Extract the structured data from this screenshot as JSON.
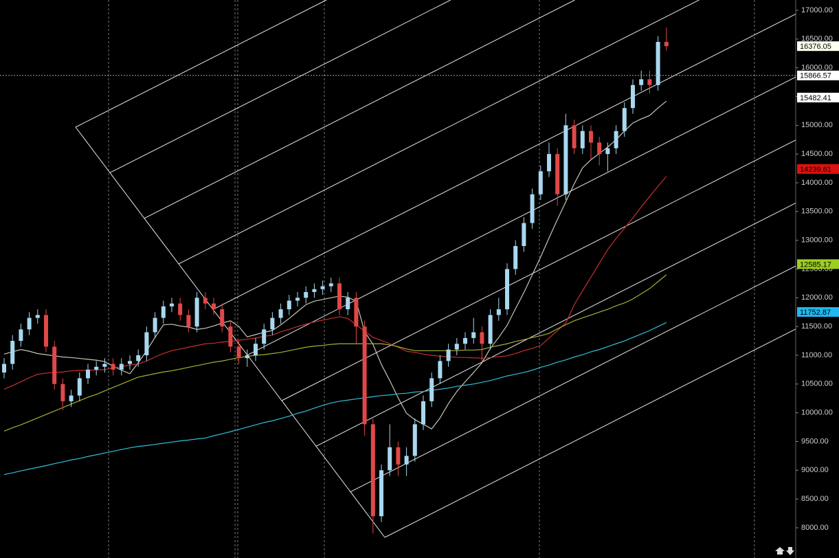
{
  "chart_data": {
    "type": "candlestick",
    "categories": [
      null,
      null,
      null,
      null,
      null,
      null,
      null,
      null,
      null,
      null,
      null,
      null,
      null,
      null,
      null,
      null,
      null,
      null,
      null,
      null,
      null,
      null,
      null,
      null,
      null,
      null,
      null,
      null,
      null,
      null,
      null,
      null,
      null,
      null,
      null,
      null,
      null,
      null,
      null,
      null,
      null,
      null,
      null,
      null,
      null,
      null,
      null,
      null,
      null,
      null,
      null,
      null,
      null,
      null,
      null,
      null,
      null,
      null,
      null,
      null,
      null,
      null,
      null,
      null,
      null,
      null,
      null,
      null,
      null,
      null,
      null,
      null,
      null,
      null,
      null,
      null,
      null,
      null,
      null,
      null
    ],
    "open": [
      10700,
      10850,
      11250,
      11450,
      11650,
      11700,
      11150,
      10500,
      10200,
      10300,
      10600,
      10750,
      10800,
      10850,
      10750,
      10850,
      10900,
      11000,
      11400,
      11650,
      11850,
      11900,
      11700,
      11500,
      12000,
      11900,
      11800,
      11500,
      11150,
      10950,
      11000,
      11200,
      11450,
      11650,
      11800,
      11950,
      12000,
      12100,
      12150,
      12200,
      12250,
      11800,
      12000,
      11500,
      9800,
      8200,
      9000,
      9400,
      9100,
      9250,
      9800,
      10200,
      10600,
      10900,
      11100,
      11200,
      11300,
      11400,
      11200,
      11700,
      11800,
      12500,
      12900,
      13300,
      13800,
      14200,
      14500,
      13800,
      15000,
      14600,
      14900,
      14700,
      14500,
      14600,
      14900,
      15300,
      15700,
      15800,
      15700,
      16450
    ],
    "high": [
      10950,
      11350,
      11550,
      11750,
      11800,
      11800,
      11250,
      10600,
      10400,
      10700,
      10850,
      10900,
      10950,
      10950,
      10950,
      11000,
      11100,
      11500,
      11750,
      11950,
      12000,
      12000,
      11800,
      12100,
      12100,
      12000,
      11900,
      11600,
      11250,
      11100,
      11300,
      11550,
      11750,
      11900,
      12050,
      12100,
      12200,
      12250,
      12300,
      12350,
      12350,
      12100,
      12100,
      11600,
      9900,
      9100,
      9800,
      9500,
      9400,
      9900,
      10300,
      10700,
      11000,
      11200,
      11300,
      11400,
      11650,
      11500,
      11800,
      12000,
      12600,
      13000,
      13400,
      13900,
      14300,
      14700,
      14600,
      15200,
      15100,
      15000,
      15000,
      14800,
      14700,
      15000,
      15400,
      15800,
      15950,
      15950,
      16550,
      16700
    ],
    "low": [
      10600,
      10750,
      11150,
      11350,
      11550,
      11050,
      10400,
      10050,
      10100,
      10200,
      10500,
      10650,
      10700,
      10650,
      10650,
      10750,
      10800,
      10900,
      11300,
      11550,
      11750,
      11600,
      11400,
      11400,
      11800,
      11700,
      11400,
      11050,
      10850,
      10800,
      10900,
      11100,
      11350,
      11550,
      11700,
      11850,
      11900,
      12000,
      12050,
      12100,
      11700,
      11700,
      11200,
      9600,
      7900,
      8100,
      8900,
      8900,
      8900,
      9150,
      9700,
      10100,
      10500,
      10800,
      11000,
      11100,
      11200,
      10900,
      11100,
      11600,
      11700,
      12400,
      12800,
      13200,
      13700,
      14100,
      13600,
      13700,
      14500,
      14500,
      14400,
      14300,
      14200,
      14500,
      14800,
      15200,
      15600,
      15550,
      15600,
      16300
    ],
    "close": [
      10850,
      11250,
      11450,
      11650,
      11700,
      11150,
      10500,
      10200,
      10300,
      10600,
      10750,
      10800,
      10850,
      10750,
      10850,
      10900,
      11000,
      11400,
      11650,
      11850,
      11900,
      11700,
      11500,
      12000,
      11900,
      11800,
      11500,
      11150,
      10950,
      11000,
      11200,
      11450,
      11650,
      11800,
      11950,
      12000,
      12100,
      12150,
      12200,
      12250,
      11800,
      12000,
      11500,
      9800,
      8200,
      9000,
      9400,
      9100,
      9250,
      9800,
      10200,
      10600,
      10900,
      11100,
      11200,
      11300,
      11400,
      11200,
      11700,
      11800,
      12500,
      12900,
      13300,
      13800,
      14200,
      14500,
      13800,
      15000,
      14600,
      14900,
      14700,
      14500,
      14600,
      14900,
      15300,
      15700,
      15800,
      15700,
      16450,
      16376.05
    ],
    "up_color": "#a8d8f0",
    "down_color": "#e04848",
    "series": [
      {
        "color": "#c8c8b8",
        "values": [
          11020,
          11060,
          11100,
          11070,
          11030,
          11010,
          10990,
          10970,
          10960,
          10945,
          10930,
          10915,
          10890,
          10810,
          10740,
          10680,
          10870,
          11080,
          11310,
          11530,
          11540,
          11510,
          11490,
          11450,
          11470,
          11510,
          11560,
          11600,
          11500,
          11320,
          11360,
          11400,
          11430,
          11530,
          11640,
          11760,
          11880,
          11940,
          11970,
          12000,
          12030,
          12010,
          11940,
          11410,
          11190,
          10840,
          10560,
          10260,
          9990,
          9880,
          9800,
          9720,
          9910,
          10160,
          10370,
          10540,
          10700,
          10870,
          11120,
          11310,
          11520,
          11810,
          12090,
          12400,
          12710,
          13040,
          13360,
          13670,
          13980,
          14260,
          14400,
          14510,
          14620,
          14750,
          14900,
          15040,
          15110,
          15170,
          15300,
          15420
        ]
      },
      {
        "color": "#c83030",
        "values": [
          10410,
          10470,
          10540,
          10610,
          10670,
          10690,
          10700,
          10710,
          10730,
          10735,
          10740,
          10745,
          10750,
          10780,
          10800,
          10830,
          10850,
          10900,
          10970,
          11030,
          11080,
          11110,
          11140,
          11170,
          11200,
          11210,
          11230,
          11240,
          11260,
          11280,
          11300,
          11330,
          11350,
          11410,
          11450,
          11500,
          11540,
          11580,
          11610,
          11640,
          11670,
          11640,
          11530,
          11420,
          11310,
          11260,
          11200,
          11140,
          11070,
          11050,
          11020,
          11000,
          10985,
          10975,
          10965,
          10960,
          10955,
          10950,
          10960,
          10975,
          10990,
          11030,
          11080,
          11120,
          11170,
          11300,
          11430,
          11560,
          11880,
          12120,
          12360,
          12600,
          12840,
          13030,
          13210,
          13390,
          13580,
          13760,
          13940,
          14110
        ]
      },
      {
        "color": "#a8b030",
        "values": [
          9680,
          9740,
          9790,
          9850,
          9910,
          9970,
          10030,
          10090,
          10150,
          10210,
          10270,
          10320,
          10380,
          10440,
          10500,
          10560,
          10620,
          10650,
          10680,
          10710,
          10730,
          10760,
          10790,
          10820,
          10850,
          10880,
          10900,
          10930,
          10960,
          10980,
          11000,
          11010,
          11030,
          11050,
          11080,
          11110,
          11140,
          11160,
          11170,
          11190,
          11200,
          11200,
          11200,
          11200,
          11200,
          11200,
          11180,
          11150,
          11110,
          11080,
          11080,
          11080,
          11080,
          11080,
          11080,
          11090,
          11090,
          11100,
          11140,
          11170,
          11200,
          11240,
          11270,
          11310,
          11340,
          11380,
          11460,
          11530,
          11600,
          11650,
          11700,
          11750,
          11800,
          11860,
          11910,
          11980,
          12070,
          12160,
          12280,
          12400
        ]
      },
      {
        "color": "#30c0d8",
        "values": [
          8925,
          8955,
          8990,
          9020,
          9050,
          9080,
          9115,
          9145,
          9180,
          9205,
          9240,
          9270,
          9300,
          9330,
          9360,
          9390,
          9415,
          9430,
          9450,
          9470,
          9490,
          9510,
          9525,
          9545,
          9560,
          9600,
          9635,
          9670,
          9710,
          9750,
          9790,
          9830,
          9860,
          9900,
          9940,
          9990,
          10030,
          10080,
          10130,
          10170,
          10200,
          10220,
          10240,
          10260,
          10280,
          10300,
          10310,
          10330,
          10340,
          10360,
          10370,
          10390,
          10410,
          10430,
          10460,
          10480,
          10500,
          10530,
          10560,
          10600,
          10640,
          10670,
          10700,
          10740,
          10790,
          10830,
          10880,
          10920,
          10970,
          11010,
          11060,
          11100,
          11150,
          11200,
          11250,
          11310,
          11370,
          11430,
          11500,
          11570
        ]
      }
    ],
    "price_labels": [
      {
        "value": 16376.05,
        "color": "#fffff0"
      },
      {
        "value": 15866.57,
        "color": "#ffffff"
      },
      {
        "value": 15482.41,
        "color": "#ffffff"
      },
      {
        "value": 14239.61,
        "color": "#e01010"
      },
      {
        "value": 12585.17,
        "color": "#9cd020"
      },
      {
        "value": 11752.87,
        "color": "#20b8f0"
      }
    ],
    "ylim": [
      7474,
      17179
    ],
    "yticks": [
      {
        "value": 8000,
        "label": "8000.00"
      },
      {
        "value": 8500,
        "label": "8500.00"
      },
      {
        "value": 9000,
        "label": "9000.00"
      },
      {
        "value": 9500,
        "label": "9500.00"
      },
      {
        "value": 10000,
        "label": "10000.00"
      },
      {
        "value": 10500,
        "label": "10500.00"
      },
      {
        "value": 11000,
        "label": "11000.00"
      },
      {
        "value": 11500,
        "label": "11500.00"
      },
      {
        "value": 12000,
        "label": "12000.00"
      },
      {
        "value": 12500,
        "label": "12500.00"
      },
      {
        "value": 13000,
        "label": "13000.00"
      },
      {
        "value": 13500,
        "label": "13500.00"
      },
      {
        "value": 14000,
        "label": "14000.00"
      },
      {
        "value": 14500,
        "label": "14500.00"
      },
      {
        "value": 15000,
        "label": "15000.00"
      },
      {
        "value": 15500,
        "label": "15500.00"
      },
      {
        "value": 16000,
        "label": "16000.00"
      },
      {
        "value": 16500,
        "label": "16500.00"
      },
      {
        "value": 17000,
        "label": "17000.00"
      }
    ]
  }
}
